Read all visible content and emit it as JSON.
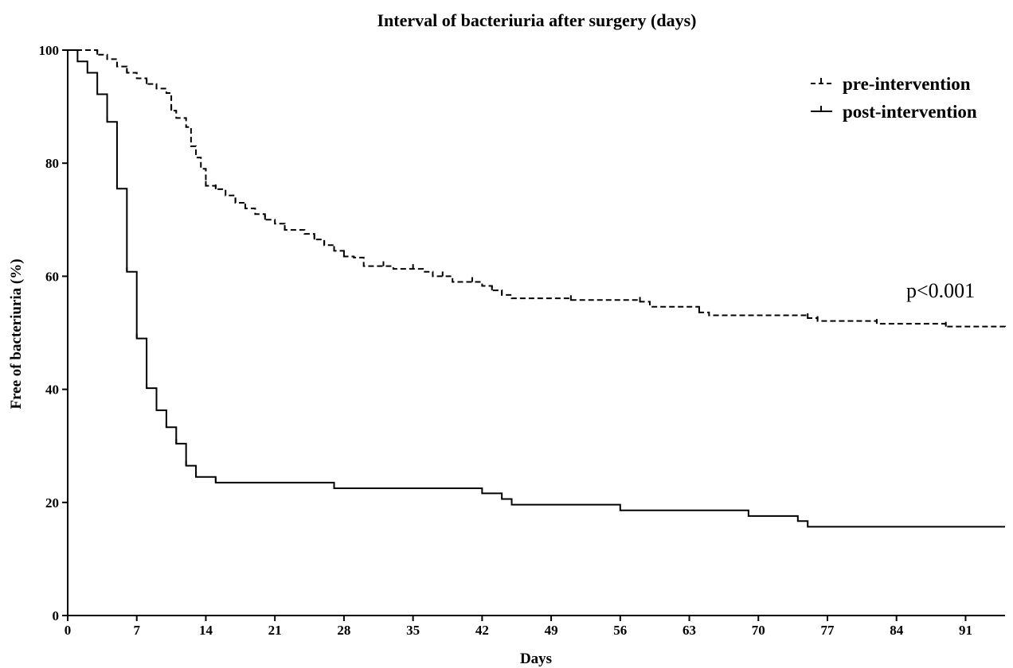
{
  "chart_data": {
    "type": "line",
    "subtype": "kaplan-meier step",
    "title": "Interval of bacteriuria after surgery (days)",
    "xlabel": "Days",
    "ylabel": "Free of bacteriuria (%)",
    "xlim": [
      0,
      95
    ],
    "ylim": [
      0,
      100
    ],
    "xticks": [
      0,
      7,
      14,
      21,
      28,
      35,
      42,
      49,
      56,
      63,
      70,
      77,
      84,
      91
    ],
    "yticks": [
      0,
      20,
      40,
      60,
      80,
      100
    ],
    "grid": false,
    "legend_position": "top-right",
    "annotation": "p<0.001",
    "series": [
      {
        "name": "pre-intervention",
        "line_style": "dashed",
        "color": "#000000",
        "points": [
          [
            0,
            100
          ],
          [
            3,
            99.2
          ],
          [
            4,
            98.4
          ],
          [
            5,
            97.1
          ],
          [
            6,
            96
          ],
          [
            7,
            95
          ],
          [
            8,
            94
          ],
          [
            9,
            93.2
          ],
          [
            10,
            92.4
          ],
          [
            10.5,
            89.3
          ],
          [
            11,
            88
          ],
          [
            12,
            86.4
          ],
          [
            12.5,
            83
          ],
          [
            13,
            81
          ],
          [
            13.5,
            79
          ],
          [
            14,
            76
          ],
          [
            15,
            75.4
          ],
          [
            16,
            74.3
          ],
          [
            17,
            73
          ],
          [
            18,
            72
          ],
          [
            19,
            71
          ],
          [
            20,
            70
          ],
          [
            21,
            69.3
          ],
          [
            22,
            68.2
          ],
          [
            24,
            67.5
          ],
          [
            25,
            66.5
          ],
          [
            26,
            65.5
          ],
          [
            27,
            64.5
          ],
          [
            28,
            63.5
          ],
          [
            29,
            63.3
          ],
          [
            30,
            61.8
          ],
          [
            33,
            61.3
          ],
          [
            36,
            60.8
          ],
          [
            37,
            60
          ],
          [
            39,
            59
          ],
          [
            42,
            58.3
          ],
          [
            43,
            57.5
          ],
          [
            44,
            56.7
          ],
          [
            45,
            56.1
          ],
          [
            51,
            55.8
          ],
          [
            58,
            55.5
          ],
          [
            59,
            54.6
          ],
          [
            64,
            53.6
          ],
          [
            65,
            53.1
          ],
          [
            75,
            52.6
          ],
          [
            76,
            52.1
          ],
          [
            82,
            51.6
          ],
          [
            89,
            51.1
          ],
          [
            95,
            50.8
          ]
        ],
        "censor_marks": [
          3,
          5,
          6,
          8,
          9,
          10.5,
          14,
          15,
          17,
          18,
          20,
          22,
          25,
          26,
          27,
          28,
          32,
          35,
          38,
          41,
          43,
          44,
          51,
          58,
          64,
          75,
          76,
          82,
          89
        ]
      },
      {
        "name": "post-intervention",
        "line_style": "solid",
        "color": "#000000",
        "points": [
          [
            0,
            100
          ],
          [
            1,
            98
          ],
          [
            2,
            96
          ],
          [
            3,
            92.2
          ],
          [
            4,
            87.3
          ],
          [
            5,
            75.5
          ],
          [
            6,
            60.8
          ],
          [
            7,
            49
          ],
          [
            8,
            40.2
          ],
          [
            9,
            36.3
          ],
          [
            10,
            33.3
          ],
          [
            11,
            30.4
          ],
          [
            12,
            26.5
          ],
          [
            13,
            24.5
          ],
          [
            15,
            23.5
          ],
          [
            27,
            22.5
          ],
          [
            42,
            21.6
          ],
          [
            44,
            20.6
          ],
          [
            45,
            19.6
          ],
          [
            56,
            18.6
          ],
          [
            69,
            17.6
          ],
          [
            74,
            16.7
          ],
          [
            75,
            15.7
          ],
          [
            95,
            15.7
          ]
        ],
        "censor_marks": [
          4,
          5,
          6,
          7,
          8,
          9,
          10,
          11,
          12,
          13,
          15,
          27
        ]
      }
    ]
  }
}
